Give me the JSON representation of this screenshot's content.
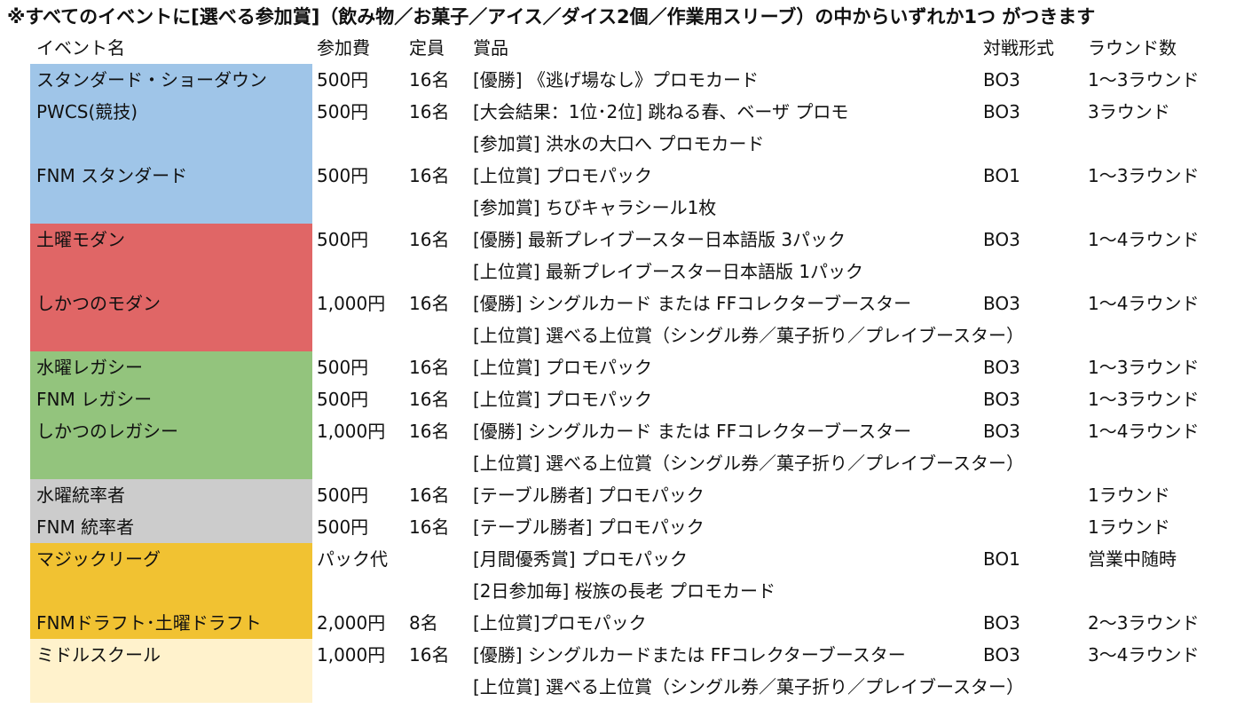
{
  "notice": "※すべてのイベントに[選べる参加賞]（飲み物／お菓子／アイス／ダイス2個／作業用スリーブ）の中からいずれか1つ がつきます",
  "headers": {
    "name": "イベント名",
    "fee": "参加費",
    "capacity": "定員",
    "prize": "賞品",
    "format": "対戦形式",
    "rounds": "ラウンド数"
  },
  "colors": {
    "standard": "#9fc5e8",
    "modern": "#e06666",
    "legacy": "#93c47d",
    "commander": "#cccccc",
    "league": "#f1c232",
    "school": "#fff2cc"
  },
  "rows": [
    {
      "name": "スタンダード・ショーダウン",
      "fee": "500円",
      "capacity": "16名",
      "prize": "[優勝] 《逃げ場なし》プロモカード",
      "format": "BO3",
      "rounds": "1～3ラウンド",
      "color": "#9fc5e8"
    },
    {
      "name": "PWCS(競技)",
      "fee": "500円",
      "capacity": "16名",
      "prize": "[大会結果：1位･2位] 跳ねる春、ベーザ プロモ",
      "format": "BO3",
      "rounds": "3ラウンド",
      "color": "#9fc5e8"
    },
    {
      "name": "",
      "fee": "",
      "capacity": "",
      "prize": "[参加賞] 洪水の大口へ プロモカード",
      "format": "",
      "rounds": "",
      "color": "#9fc5e8"
    },
    {
      "name": "FNM スタンダード",
      "fee": "500円",
      "capacity": "16名",
      "prize": "[上位賞] プロモパック",
      "format": "BO1",
      "rounds": "1～3ラウンド",
      "color": "#9fc5e8"
    },
    {
      "name": "",
      "fee": "",
      "capacity": "",
      "prize": "[参加賞] ちびキャラシール1枚",
      "format": "",
      "rounds": "",
      "color": "#9fc5e8"
    },
    {
      "name": "土曜モダン",
      "fee": "500円",
      "capacity": "16名",
      "prize": "[優勝] 最新プレイブースター日本語版 3パック",
      "format": "BO3",
      "rounds": "1～4ラウンド",
      "color": "#e06666"
    },
    {
      "name": "",
      "fee": "",
      "capacity": "",
      "prize": "[上位賞] 最新プレイブースター日本語版 1パック",
      "format": "",
      "rounds": "",
      "color": "#e06666"
    },
    {
      "name": "しかつのモダン",
      "fee": "1,000円",
      "capacity": "16名",
      "prize": "[優勝] シングルカード または FFコレクターブースター",
      "format": "BO3",
      "rounds": "1～4ラウンド",
      "color": "#e06666"
    },
    {
      "name": "",
      "fee": "",
      "capacity": "",
      "prize": "[上位賞] 選べる上位賞（シングル券／菓子折り／プレイブースター）",
      "format": "",
      "rounds": "",
      "color": "#e06666"
    },
    {
      "name": "水曜レガシー",
      "fee": "500円",
      "capacity": "16名",
      "prize": "[上位賞] プロモパック",
      "format": "BO3",
      "rounds": "1～3ラウンド",
      "color": "#93c47d"
    },
    {
      "name": "FNM レガシー",
      "fee": "500円",
      "capacity": "16名",
      "prize": "[上位賞] プロモパック",
      "format": "BO3",
      "rounds": "1～3ラウンド",
      "color": "#93c47d"
    },
    {
      "name": "しかつのレガシー",
      "fee": "1,000円",
      "capacity": "16名",
      "prize": "[優勝] シングルカード または FFコレクターブースター",
      "format": "BO3",
      "rounds": "1～4ラウンド",
      "color": "#93c47d"
    },
    {
      "name": "",
      "fee": "",
      "capacity": "",
      "prize": "[上位賞] 選べる上位賞（シングル券／菓子折り／プレイブースター）",
      "format": "",
      "rounds": "",
      "color": "#93c47d"
    },
    {
      "name": "水曜統率者",
      "fee": "500円",
      "capacity": "16名",
      "prize": "[テーブル勝者] プロモパック",
      "format": "",
      "rounds": "1ラウンド",
      "color": "#cccccc"
    },
    {
      "name": "FNM 統率者",
      "fee": "500円",
      "capacity": "16名",
      "prize": "[テーブル勝者] プロモパック",
      "format": "",
      "rounds": "1ラウンド",
      "color": "#cccccc"
    },
    {
      "name": "マジックリーグ",
      "fee": "パック代",
      "capacity": "",
      "prize": "[月間優秀賞] プロモパック",
      "format": "BO1",
      "rounds": "営業中随時",
      "color": "#f1c232"
    },
    {
      "name": "",
      "fee": "",
      "capacity": "",
      "prize": "[2日参加毎] 桜族の長老 プロモカード",
      "format": "",
      "rounds": "",
      "color": "#f1c232"
    },
    {
      "name": "FNMドラフト･土曜ドラフト",
      "fee": "2,000円",
      "capacity": "8名",
      "prize": "[上位賞]プロモパック",
      "format": "BO3",
      "rounds": "2～3ラウンド",
      "color": "#f1c232"
    },
    {
      "name": "ミドルスクール",
      "fee": "1,000円",
      "capacity": "16名",
      "prize": "[優勝] シングルカードまたは FFコレクターブースター",
      "format": "BO3",
      "rounds": "3～4ラウンド",
      "color": "#fff2cc"
    },
    {
      "name": "",
      "fee": "",
      "capacity": "",
      "prize": "[上位賞] 選べる上位賞（シングル券／菓子折り／プレイブースター）",
      "format": "",
      "rounds": "",
      "color": "#fff2cc"
    }
  ]
}
